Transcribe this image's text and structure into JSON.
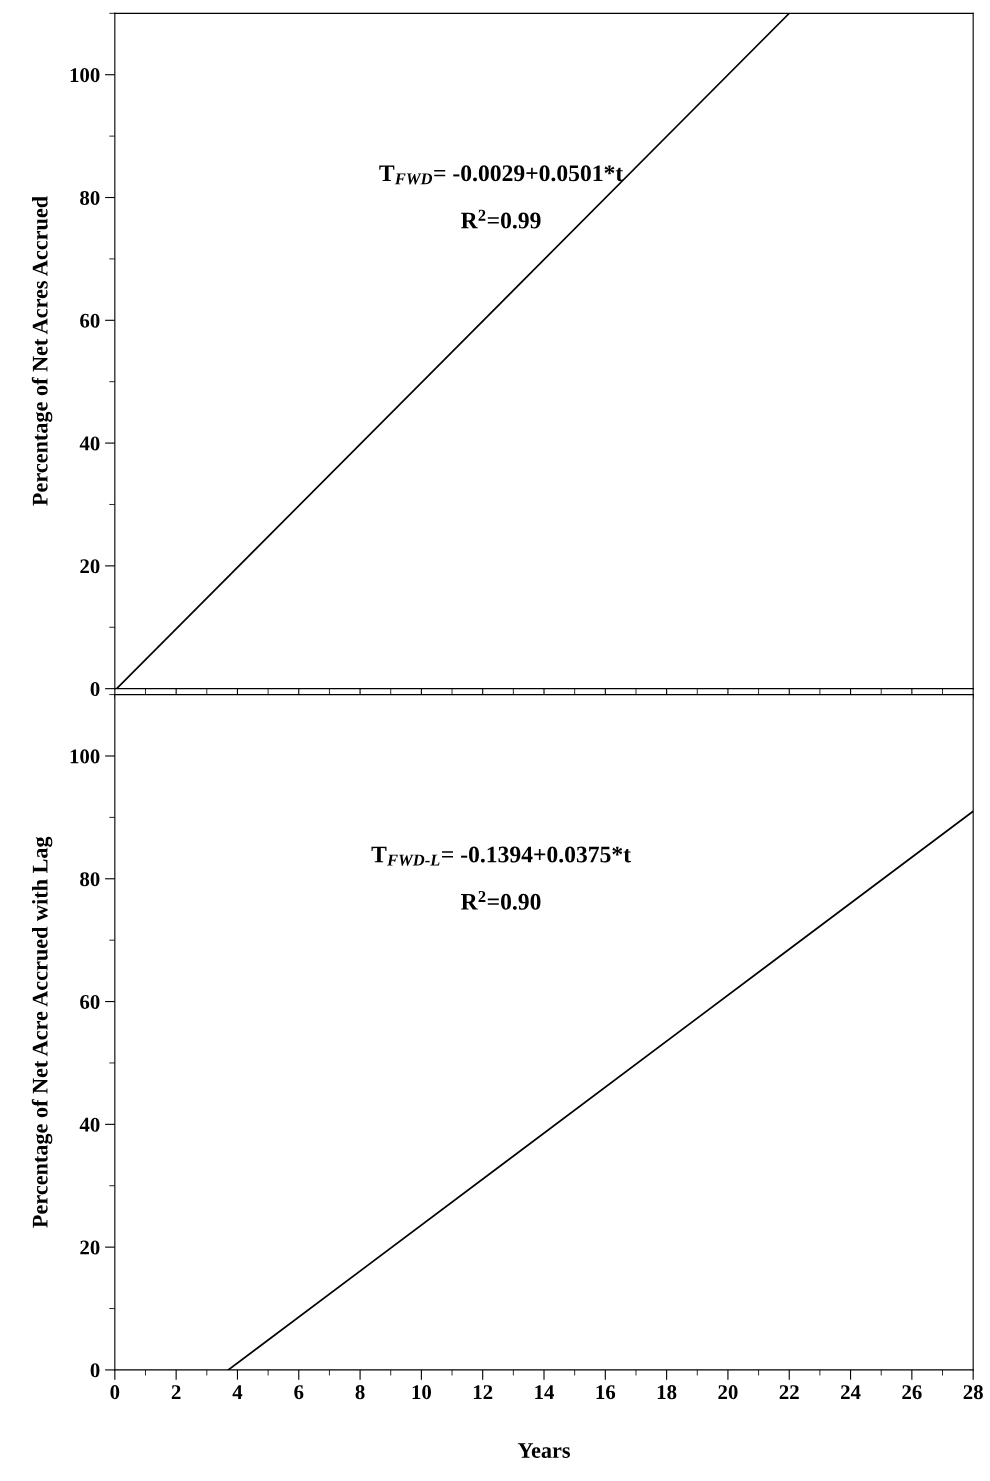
{
  "chart_data": [
    {
      "type": "line",
      "ylabel": "Percentage of Net Acres Accrued",
      "annotations": [
        "T$_{FWD}$= -0.0029+0.0501*t",
        "R$^{2}$=0.99"
      ],
      "series": [
        {
          "color": "#000000",
          "x": [
            0.06,
            22
          ],
          "values": [
            0,
            110
          ]
        }
      ],
      "xlim": [
        0,
        28
      ],
      "ylim": [
        0,
        110
      ],
      "xticks": [
        0,
        2,
        4,
        6,
        8,
        10,
        12,
        14,
        16,
        18,
        20,
        22,
        24,
        26,
        28
      ],
      "yticks": [
        0,
        20,
        40,
        60,
        80,
        100
      ],
      "tick_labels": "y",
      "grid": false,
      "legend": false,
      "marker": "none",
      "line_style": "solid"
    },
    {
      "type": "line",
      "xlabel": "Years",
      "ylabel": "Percentage of Net Acre Accrued with Lag",
      "annotations": [
        "T$_{FWD‐L}$= -0.1394+0.0375*t",
        "R$^{2}$=0.90"
      ],
      "series": [
        {
          "color": "#000000",
          "x": [
            3.7,
            28
          ],
          "values": [
            0,
            91
          ]
        }
      ],
      "xlim": [
        0,
        28
      ],
      "ylim": [
        0,
        110
      ],
      "xticks": [
        0,
        2,
        4,
        6,
        8,
        10,
        12,
        14,
        16,
        18,
        20,
        22,
        24,
        26,
        28
      ],
      "yticks": [
        0,
        20,
        40,
        60,
        80,
        100
      ],
      "grid": false,
      "legend": false,
      "marker": "none",
      "line_style": "solid"
    }
  ]
}
